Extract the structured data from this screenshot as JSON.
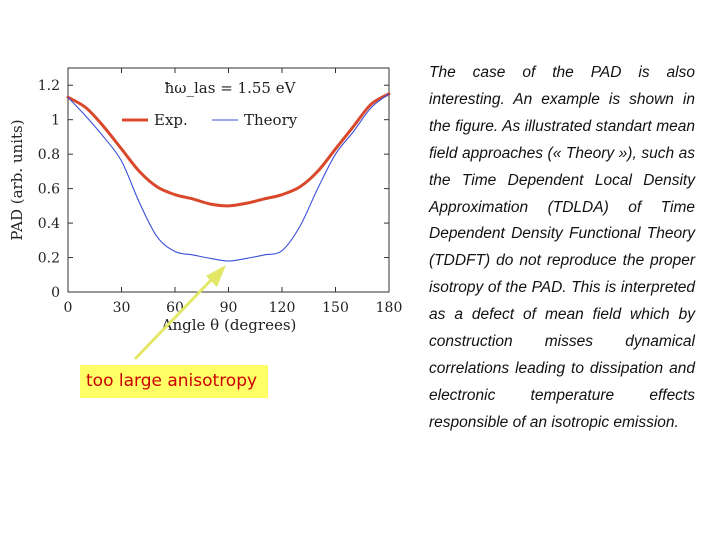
{
  "chart_data": {
    "type": "line",
    "annotation": "ħω_las = 1.55 eV",
    "xlabel": "Angle θ (degrees)",
    "ylabel": "PAD (arb. units)",
    "xlim": [
      0,
      180
    ],
    "ylim": [
      0,
      1.3
    ],
    "xticks": [
      0,
      30,
      60,
      90,
      120,
      150,
      180
    ],
    "xtick_labels": [
      "0",
      "30",
      "60",
      "90",
      "120",
      "150",
      "180"
    ],
    "yticks": [
      0,
      0.2,
      0.4,
      0.6,
      0.8,
      1,
      1.2
    ],
    "ytick_labels": [
      "0",
      "0.2",
      "0.4",
      "0.6",
      "0.8",
      "1",
      "1.2"
    ],
    "legend_position": "top-left",
    "grid": false,
    "x": [
      0,
      10,
      20,
      30,
      40,
      50,
      60,
      70,
      80,
      90,
      100,
      110,
      120,
      130,
      140,
      150,
      160,
      170,
      180
    ],
    "series": [
      {
        "name": "Exp.",
        "color": "#d9482b",
        "values": [
          1.13,
          1.07,
          0.96,
          0.83,
          0.7,
          0.61,
          0.565,
          0.54,
          0.51,
          0.5,
          0.515,
          0.54,
          0.565,
          0.61,
          0.7,
          0.83,
          0.96,
          1.09,
          1.15
        ]
      },
      {
        "name": "Theory",
        "color": "#3b4fd8",
        "values": [
          1.13,
          1.02,
          0.9,
          0.76,
          0.52,
          0.32,
          0.235,
          0.215,
          0.195,
          0.18,
          0.195,
          0.215,
          0.24,
          0.38,
          0.6,
          0.8,
          0.93,
          1.07,
          1.15
        ]
      }
    ]
  },
  "callout": {
    "text": "too large anisotropy",
    "arrow_color": "#e2e866"
  },
  "paragraph": "The case of the PAD is also interesting. An example is shown in the figure. As illustrated standart mean field approaches (« Theory »), such as the Time Dependent Local Density Approximation (TDLDA) of Time Dependent Density Functional Theory (TDDFT) do not reproduce the proper isotropy of the PAD. This is interpreted as a defect of mean field which by construction misses dynamical correlations leading to dissipation and electronic temperature effects responsible of an isotropic emission."
}
